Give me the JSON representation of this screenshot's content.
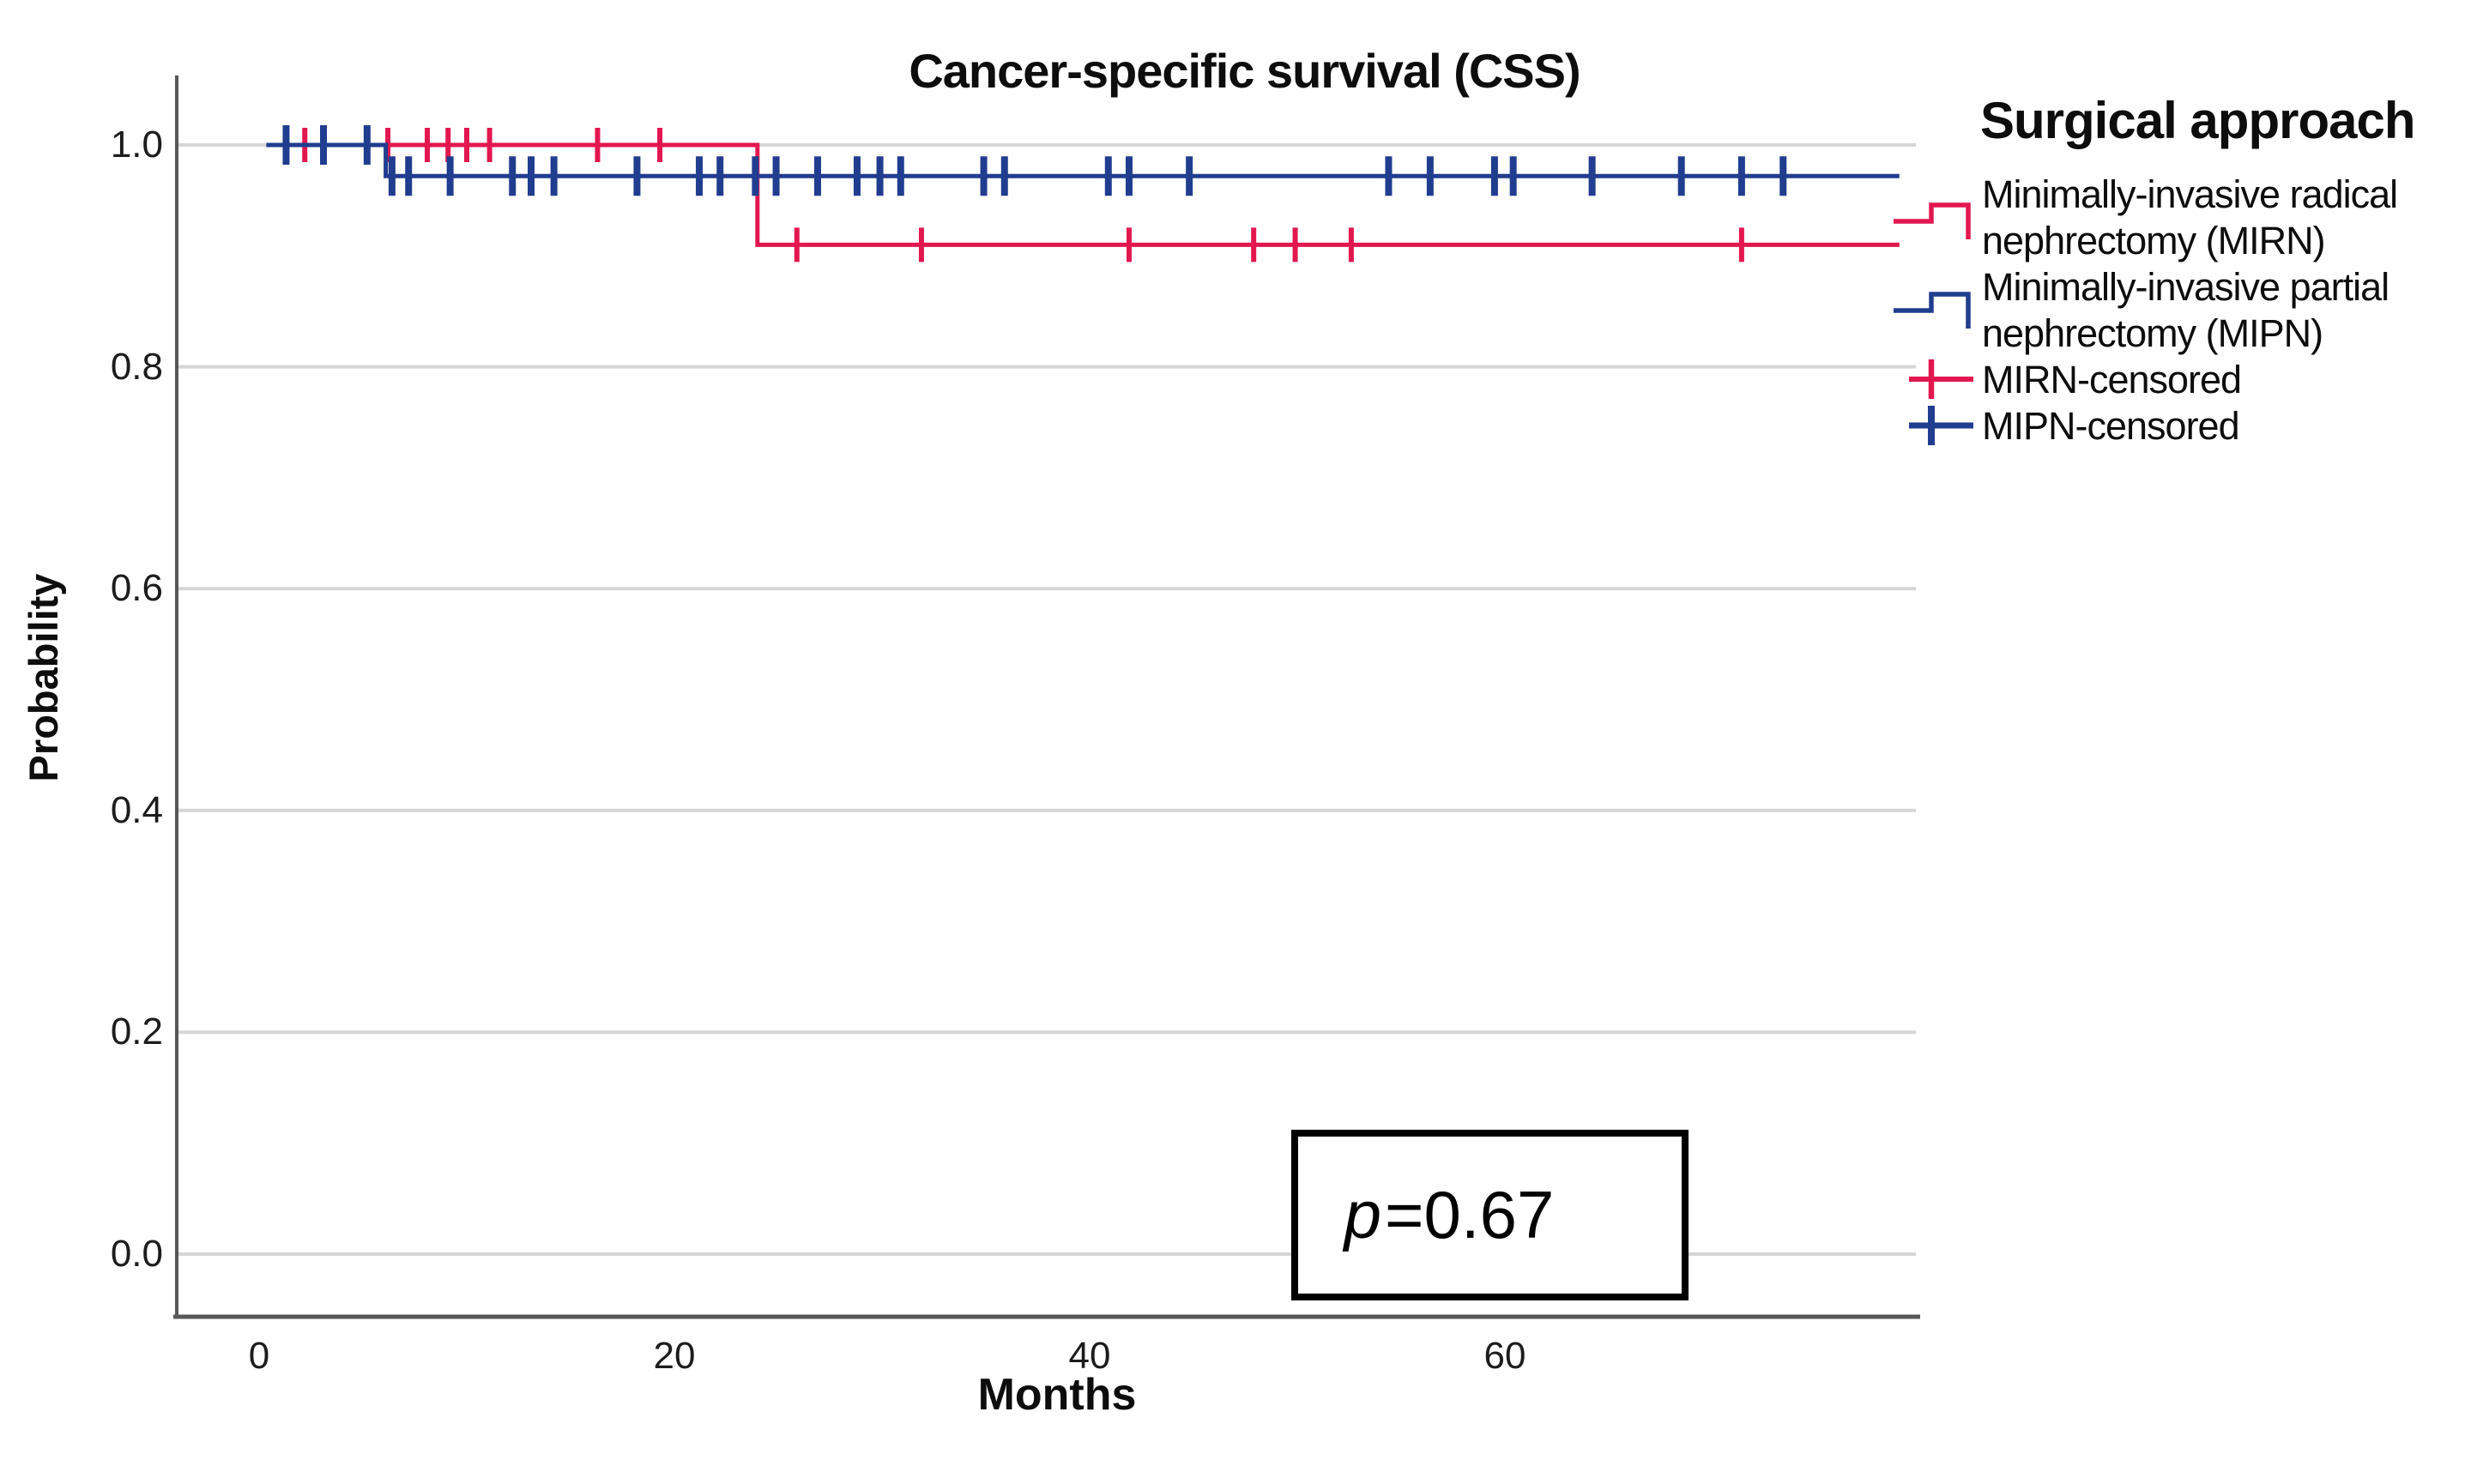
{
  "title": "Cancer-specific survival (CSS)",
  "axes": {
    "y": {
      "label": "Probability",
      "ticks": [
        "1.0",
        "0.8",
        "0.6",
        "0.4",
        "0.2",
        "0.0"
      ],
      "tick_values": [
        1.0,
        0.8,
        0.6,
        0.4,
        0.2,
        0.0
      ],
      "range": [
        0.0,
        1.0
      ]
    },
    "x": {
      "label": "Months",
      "ticks": [
        "0",
        "20",
        "40",
        "60"
      ],
      "tick_values": [
        0,
        20,
        40,
        60
      ],
      "range_months": [
        0,
        79
      ]
    }
  },
  "annotation": {
    "p_symbol": "p",
    "p_rest": "=0.67",
    "p_full": "p=0.67"
  },
  "legend": {
    "title": "Surgical approach",
    "entries": [
      {
        "label": "Minimally-invasive radical nephrectomy (MIRN)",
        "type": "curve-line",
        "color": "#e3174f"
      },
      {
        "label": "Minimally-invasive partial nephrectomy (MIPN)",
        "type": "curve-line",
        "color": "#203d8f"
      },
      {
        "label": "MIRN-censored",
        "type": "censor-plus",
        "color": "#e3174f"
      },
      {
        "label": "MIPN-censored",
        "type": "censor-plus",
        "color": "#203d8f"
      }
    ]
  },
  "colors": {
    "mirn": "#e3174f",
    "mipn": "#203d8f",
    "grid": "#d6d6d6",
    "axis": "#575757",
    "text": "#0d0d0d"
  },
  "chart_data": {
    "type": "line",
    "subtype": "kaplan-meier-step",
    "title": "Cancer-specific survival (CSS)",
    "xlabel": "Months",
    "ylabel": "Probability",
    "xlim": [
      0,
      79
    ],
    "ylim": [
      0.0,
      1.0
    ],
    "grid": true,
    "legend_position": "right",
    "annotation": "p=0.67",
    "series": [
      {
        "name": "MIRN",
        "full_name": "Minimally-invasive radical nephrectomy (MIRN)",
        "color": "#e3174f",
        "steps": [
          [
            0.35,
            1.0
          ],
          [
            24.0,
            1.0
          ],
          [
            24.0,
            0.91
          ],
          [
            79.0,
            0.91
          ]
        ],
        "events": [
          {
            "month": 24,
            "drop_to": 0.91
          }
        ],
        "censored": [
          [
            2.2,
            1.0
          ],
          [
            5.2,
            1.0
          ],
          [
            6.2,
            1.0
          ],
          [
            8.1,
            1.0
          ],
          [
            9.1,
            1.0
          ],
          [
            10.0,
            1.0
          ],
          [
            11.1,
            1.0
          ],
          [
            16.3,
            1.0
          ],
          [
            19.3,
            1.0
          ],
          [
            25.9,
            0.91
          ],
          [
            31.9,
            0.91
          ],
          [
            41.9,
            0.91
          ],
          [
            47.9,
            0.91
          ],
          [
            49.9,
            0.91
          ],
          [
            52.6,
            0.91
          ],
          [
            71.4,
            0.91
          ]
        ]
      },
      {
        "name": "MIPN",
        "full_name": "Minimally-invasive partial nephrectomy (MIPN)",
        "color": "#203d8f",
        "steps": [
          [
            0.35,
            1.0
          ],
          [
            6.1,
            1.0
          ],
          [
            6.1,
            0.972
          ],
          [
            79.0,
            0.972
          ]
        ],
        "events": [
          {
            "month": 6,
            "drop_to": 0.972
          }
        ],
        "censored": [
          [
            1.3,
            1.0
          ],
          [
            3.1,
            1.0
          ],
          [
            5.2,
            1.0
          ],
          [
            6.4,
            0.972
          ],
          [
            7.2,
            0.972
          ],
          [
            9.2,
            0.972
          ],
          [
            12.2,
            0.972
          ],
          [
            13.1,
            0.972
          ],
          [
            14.2,
            0.972
          ],
          [
            18.2,
            0.972
          ],
          [
            21.2,
            0.972
          ],
          [
            22.2,
            0.972
          ],
          [
            23.9,
            0.972
          ],
          [
            24.9,
            0.972
          ],
          [
            26.9,
            0.972
          ],
          [
            28.8,
            0.972
          ],
          [
            29.9,
            0.972
          ],
          [
            30.9,
            0.972
          ],
          [
            34.9,
            0.972
          ],
          [
            35.9,
            0.972
          ],
          [
            40.9,
            0.972
          ],
          [
            41.9,
            0.972
          ],
          [
            44.8,
            0.972
          ],
          [
            54.4,
            0.972
          ],
          [
            56.4,
            0.972
          ],
          [
            59.5,
            0.972
          ],
          [
            60.4,
            0.972
          ],
          [
            64.2,
            0.972
          ],
          [
            68.5,
            0.972
          ],
          [
            71.4,
            0.972
          ],
          [
            73.4,
            0.972
          ]
        ]
      }
    ]
  }
}
